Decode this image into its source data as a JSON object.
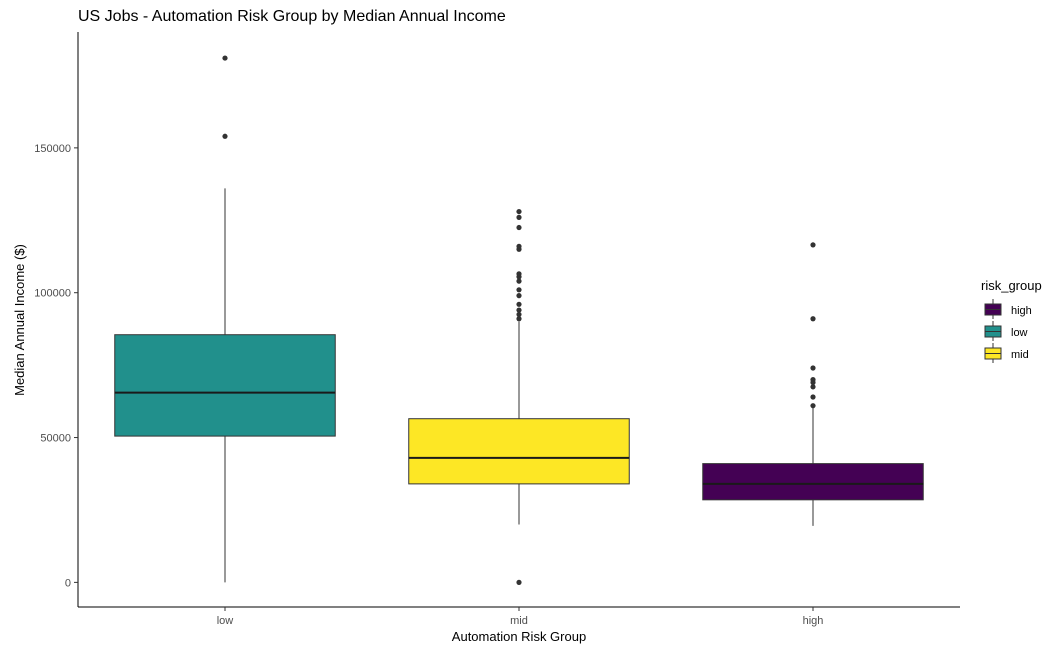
{
  "chart_data": {
    "type": "boxplot",
    "title": "US Jobs - Automation Risk Group by Median Annual Income",
    "xlabel": "Automation Risk Group",
    "ylabel": "Median Annual Income ($)",
    "categories": [
      "low",
      "mid",
      "high"
    ],
    "ylim": [
      -8500,
      190000
    ],
    "yticks": [
      0,
      50000,
      100000,
      150000
    ],
    "ytick_labels": [
      "0",
      "50000",
      "100000",
      "150000"
    ],
    "grid": false,
    "legend": {
      "title": "risk_group",
      "position": "right",
      "entries": [
        {
          "label": "high",
          "color": "#440154"
        },
        {
          "label": "low",
          "color": "#21908C"
        },
        {
          "label": "mid",
          "color": "#FDE725"
        }
      ]
    },
    "boxes": [
      {
        "category": "low",
        "color": "#21908C",
        "whisker_low": 0,
        "q1": 50500,
        "median": 65500,
        "q3": 85500,
        "whisker_high": 136000,
        "outliers": [
          154000,
          181000
        ]
      },
      {
        "category": "mid",
        "color": "#FDE725",
        "whisker_low": 20000,
        "q1": 34000,
        "median": 43000,
        "q3": 56500,
        "whisker_high": 90000,
        "outliers": [
          0,
          91000,
          92500,
          94000,
          96000,
          99000,
          101000,
          104000,
          105500,
          106500,
          115000,
          116000,
          122500,
          126000,
          128000
        ]
      },
      {
        "category": "high",
        "color": "#440154",
        "whisker_low": 19500,
        "q1": 28500,
        "median": 34000,
        "q3": 41000,
        "whisker_high": 60500,
        "outliers": [
          61000,
          64000,
          67500,
          69000,
          70000,
          74000,
          91000,
          116500
        ]
      }
    ]
  }
}
